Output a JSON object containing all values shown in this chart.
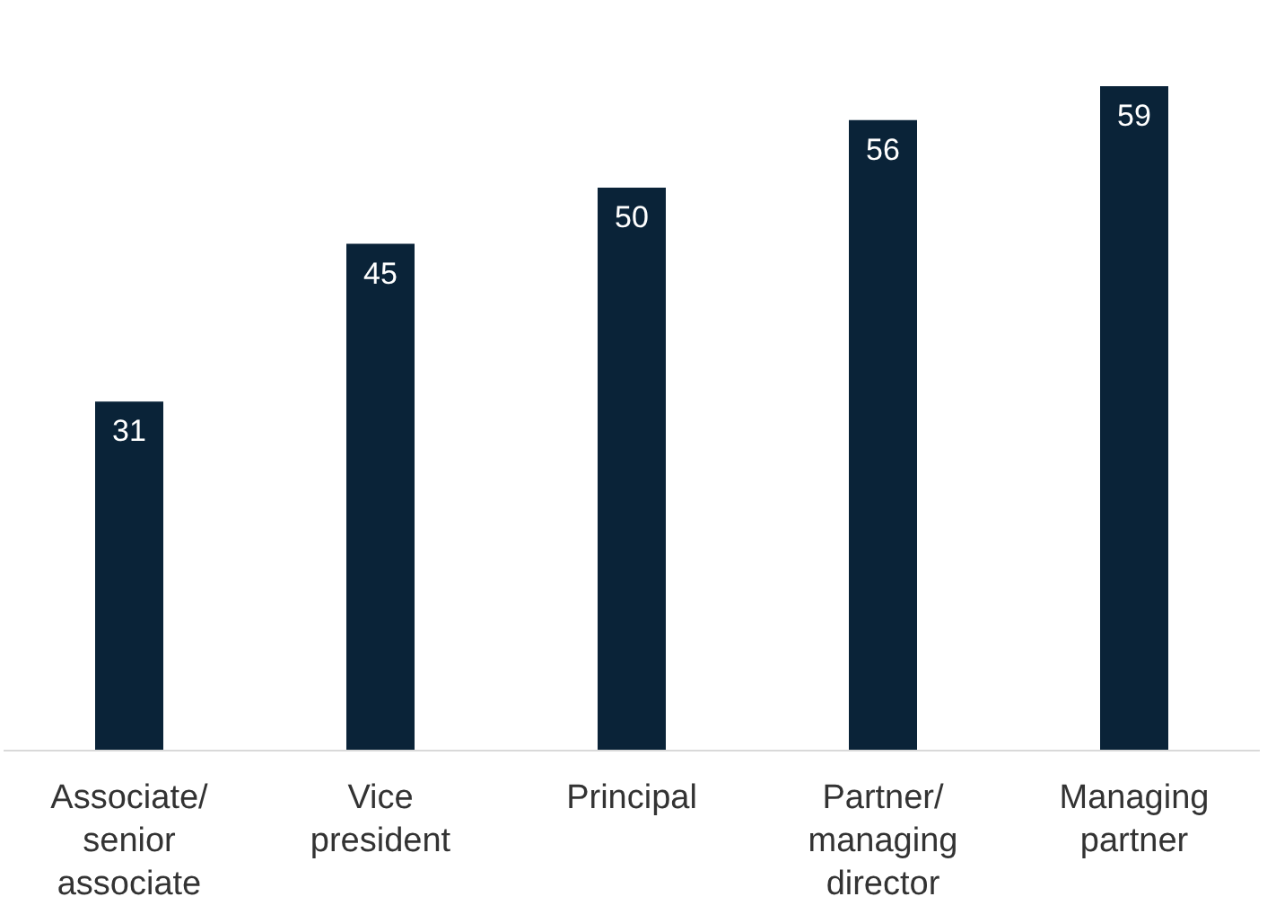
{
  "chart_data": {
    "type": "bar",
    "categories": [
      "Associate/ senior associate",
      "Vice president",
      "Principal",
      "Partner/ managing director",
      "Managing partner"
    ],
    "values": [
      31,
      45,
      50,
      56,
      59
    ],
    "color": "#0a2338",
    "data_labels": true
  }
}
